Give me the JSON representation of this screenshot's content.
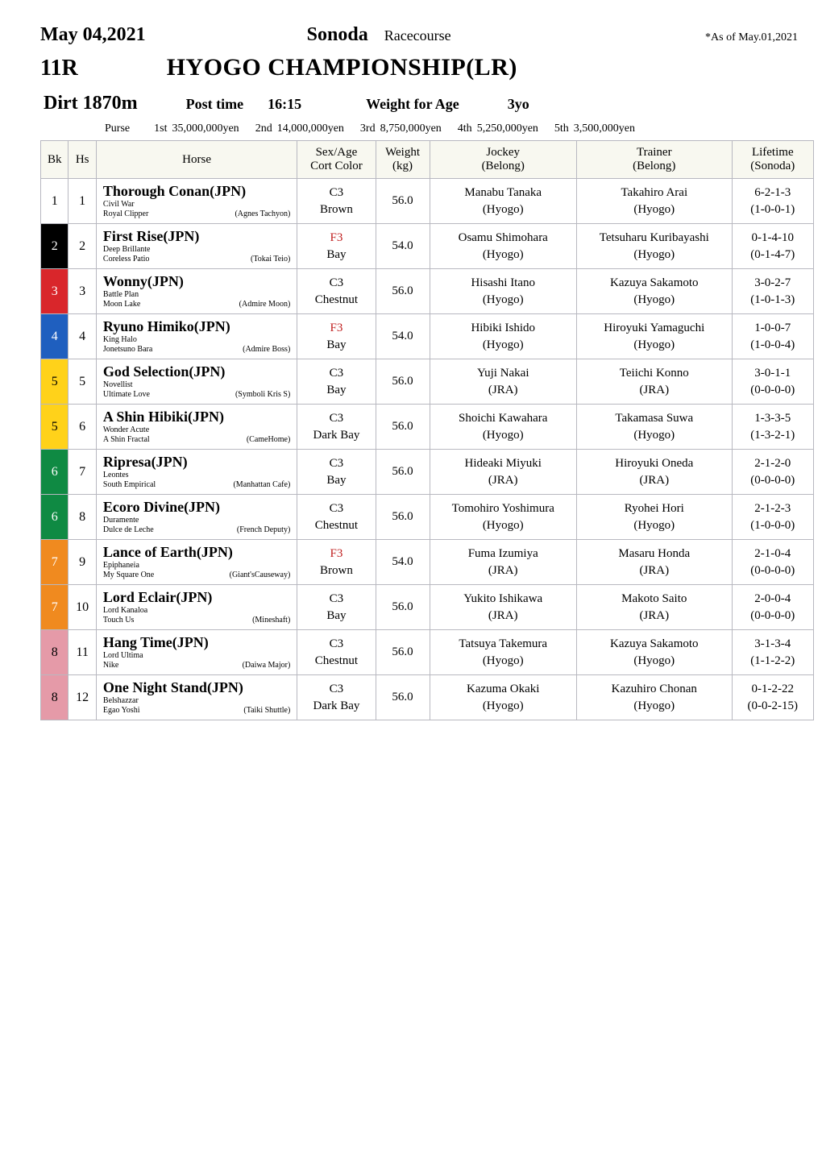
{
  "header": {
    "date": "May 04,2021",
    "venue": "Sonoda",
    "venue_type": "Racecourse",
    "as_of": "*As of May.01,2021",
    "race_number": "11R",
    "race_name": "HYOGO CHAMPIONSHIP(LR)",
    "surface_distance": "Dirt 1870m",
    "post_time_label": "Post time",
    "post_time": "16:15",
    "wfa_label": "Weight for Age",
    "wfa_value": "3yo",
    "purse_label": "Purse",
    "purses": [
      {
        "ord": "1st",
        "amount": "35,000,000yen"
      },
      {
        "ord": "2nd",
        "amount": "14,000,000yen"
      },
      {
        "ord": "3rd",
        "amount": "8,750,000yen"
      },
      {
        "ord": "4th",
        "amount": "5,250,000yen"
      },
      {
        "ord": "5th",
        "amount": "3,500,000yen"
      }
    ]
  },
  "columns": {
    "bk": "Bk",
    "hs": "Hs",
    "horse": "Horse",
    "sex_age_l1": "Sex/Age",
    "sex_age_l2": "Cort Color",
    "weight_l1": "Weight",
    "weight_l2": "(kg)",
    "jockey_l1": "Jockey",
    "jockey_l2": "(Belong)",
    "trainer_l1": "Trainer",
    "trainer_l2": "(Belong)",
    "life_l1": "Lifetime",
    "life_l2": "(Sonoda)"
  },
  "bk_palette": {
    "1": {
      "bg": "#ffffff",
      "fg": "#000000"
    },
    "2": {
      "bg": "#000000",
      "fg": "#ffffff"
    },
    "3": {
      "bg": "#d9262b",
      "fg": "#ffffff"
    },
    "4": {
      "bg": "#1f5fbf",
      "fg": "#ffffff"
    },
    "5": {
      "bg": "#ffd21a",
      "fg": "#000000"
    },
    "6": {
      "bg": "#0f8a43",
      "fg": "#ffffff"
    },
    "7": {
      "bg": "#f08a1f",
      "fg": "#ffffff"
    },
    "8": {
      "bg": "#e59aa8",
      "fg": "#000000"
    }
  },
  "color_text": {
    "default": "#000000",
    "f3": "#c02020"
  },
  "rows": [
    {
      "bk": "1",
      "hs": "1",
      "horse": "Thorough Conan(JPN)",
      "sire": "Civil War",
      "dam": "Royal Clipper",
      "bms": "(Agnes Tachyon)",
      "sex_age": "C3",
      "sex_color_key": "default",
      "coat": "Brown",
      "weight": "56.0",
      "jockey": "Manabu Tanaka",
      "jockey_belong": "(Hyogo)",
      "trainer": "Takahiro Arai",
      "trainer_belong": "(Hyogo)",
      "life": "6-2-1-3",
      "life_sonoda": "(1-0-0-1)"
    },
    {
      "bk": "2",
      "hs": "2",
      "horse": "First Rise(JPN)",
      "sire": "Deep Brillante",
      "dam": "Coreless Patio",
      "bms": "(Tokai Teio)",
      "sex_age": "F3",
      "sex_color_key": "f3",
      "coat": "Bay",
      "weight": "54.0",
      "jockey": "Osamu Shimohara",
      "jockey_belong": "(Hyogo)",
      "trainer": "Tetsuharu Kuribayashi",
      "trainer_belong": "(Hyogo)",
      "life": "0-1-4-10",
      "life_sonoda": "(0-1-4-7)"
    },
    {
      "bk": "3",
      "hs": "3",
      "horse": "Wonny(JPN)",
      "sire": "Battle Plan",
      "dam": "Moon Lake",
      "bms": "(Admire Moon)",
      "sex_age": "C3",
      "sex_color_key": "default",
      "coat": "Chestnut",
      "weight": "56.0",
      "jockey": "Hisashi Itano",
      "jockey_belong": "(Hyogo)",
      "trainer": "Kazuya Sakamoto",
      "trainer_belong": "(Hyogo)",
      "life": "3-0-2-7",
      "life_sonoda": "(1-0-1-3)"
    },
    {
      "bk": "4",
      "hs": "4",
      "horse": "Ryuno Himiko(JPN)",
      "sire": "King Halo",
      "dam": "Jonetsuno Bara",
      "bms": "(Admire Boss)",
      "sex_age": "F3",
      "sex_color_key": "f3",
      "coat": "Bay",
      "weight": "54.0",
      "jockey": "Hibiki Ishido",
      "jockey_belong": "(Hyogo)",
      "trainer": "Hiroyuki Yamaguchi",
      "trainer_belong": "(Hyogo)",
      "life": "1-0-0-7",
      "life_sonoda": "(1-0-0-4)"
    },
    {
      "bk": "5",
      "hs": "5",
      "horse": "God Selection(JPN)",
      "sire": "Novellist",
      "dam": "Ultimate Love",
      "bms": "(Symboli Kris S)",
      "sex_age": "C3",
      "sex_color_key": "default",
      "coat": "Bay",
      "weight": "56.0",
      "jockey": "Yuji Nakai",
      "jockey_belong": "(JRA)",
      "trainer": "Teiichi Konno",
      "trainer_belong": "(JRA)",
      "life": "3-0-1-1",
      "life_sonoda": "(0-0-0-0)"
    },
    {
      "bk": "5",
      "hs": "6",
      "horse": "A Shin Hibiki(JPN)",
      "sire": "Wonder Acute",
      "dam": "A Shin Fractal",
      "bms": "(CameHome)",
      "sex_age": "C3",
      "sex_color_key": "default",
      "coat": "Dark Bay",
      "weight": "56.0",
      "jockey": "Shoichi Kawahara",
      "jockey_belong": "(Hyogo)",
      "trainer": "Takamasa Suwa",
      "trainer_belong": "(Hyogo)",
      "life": "1-3-3-5",
      "life_sonoda": "(1-3-2-1)"
    },
    {
      "bk": "6",
      "hs": "7",
      "horse": "Ripresa(JPN)",
      "sire": "Leontes",
      "dam": "South Empirical",
      "bms": "(Manhattan Cafe)",
      "sex_age": "C3",
      "sex_color_key": "default",
      "coat": "Bay",
      "weight": "56.0",
      "jockey": "Hideaki Miyuki",
      "jockey_belong": "(JRA)",
      "trainer": "Hiroyuki Oneda",
      "trainer_belong": "(JRA)",
      "life": "2-1-2-0",
      "life_sonoda": "(0-0-0-0)"
    },
    {
      "bk": "6",
      "hs": "8",
      "horse": "Ecoro Divine(JPN)",
      "sire": "Duramente",
      "dam": "Dulce de Leche",
      "bms": "(French Deputy)",
      "sex_age": "C3",
      "sex_color_key": "default",
      "coat": "Chestnut",
      "weight": "56.0",
      "jockey": "Tomohiro Yoshimura",
      "jockey_belong": "(Hyogo)",
      "trainer": "Ryohei Hori",
      "trainer_belong": "(Hyogo)",
      "life": "2-1-2-3",
      "life_sonoda": "(1-0-0-0)"
    },
    {
      "bk": "7",
      "hs": "9",
      "horse": "Lance of Earth(JPN)",
      "sire": "Epiphaneia",
      "dam": "My Square One",
      "bms": "(Giant'sCauseway)",
      "sex_age": "F3",
      "sex_color_key": "f3",
      "coat": "Brown",
      "weight": "54.0",
      "jockey": "Fuma Izumiya",
      "jockey_belong": "(JRA)",
      "trainer": "Masaru Honda",
      "trainer_belong": "(JRA)",
      "life": "2-1-0-4",
      "life_sonoda": "(0-0-0-0)"
    },
    {
      "bk": "7",
      "hs": "10",
      "horse": "Lord Eclair(JPN)",
      "sire": "Lord Kanaloa",
      "dam": "Touch Us",
      "bms": "(Mineshaft)",
      "sex_age": "C3",
      "sex_color_key": "default",
      "coat": "Bay",
      "weight": "56.0",
      "jockey": "Yukito Ishikawa",
      "jockey_belong": "(JRA)",
      "trainer": "Makoto Saito",
      "trainer_belong": "(JRA)",
      "life": "2-0-0-4",
      "life_sonoda": "(0-0-0-0)"
    },
    {
      "bk": "8",
      "hs": "11",
      "horse": "Hang Time(JPN)",
      "sire": "Lord Ultima",
      "dam": "Nike",
      "bms": "(Daiwa Major)",
      "sex_age": "C3",
      "sex_color_key": "default",
      "coat": "Chestnut",
      "weight": "56.0",
      "jockey": "Tatsuya Takemura",
      "jockey_belong": "(Hyogo)",
      "trainer": "Kazuya Sakamoto",
      "trainer_belong": "(Hyogo)",
      "life": "3-1-3-4",
      "life_sonoda": "(1-1-2-2)"
    },
    {
      "bk": "8",
      "hs": "12",
      "horse": "One Night Stand(JPN)",
      "sire": "Belshazzar",
      "dam": "Egao Yoshi",
      "bms": "(Taiki Shuttle)",
      "sex_age": "C3",
      "sex_color_key": "default",
      "coat": "Dark Bay",
      "weight": "56.0",
      "jockey": "Kazuma Okaki",
      "jockey_belong": "(Hyogo)",
      "trainer": "Kazuhiro Chonan",
      "trainer_belong": "(Hyogo)",
      "life": "0-1-2-22",
      "life_sonoda": "(0-0-2-15)"
    }
  ]
}
